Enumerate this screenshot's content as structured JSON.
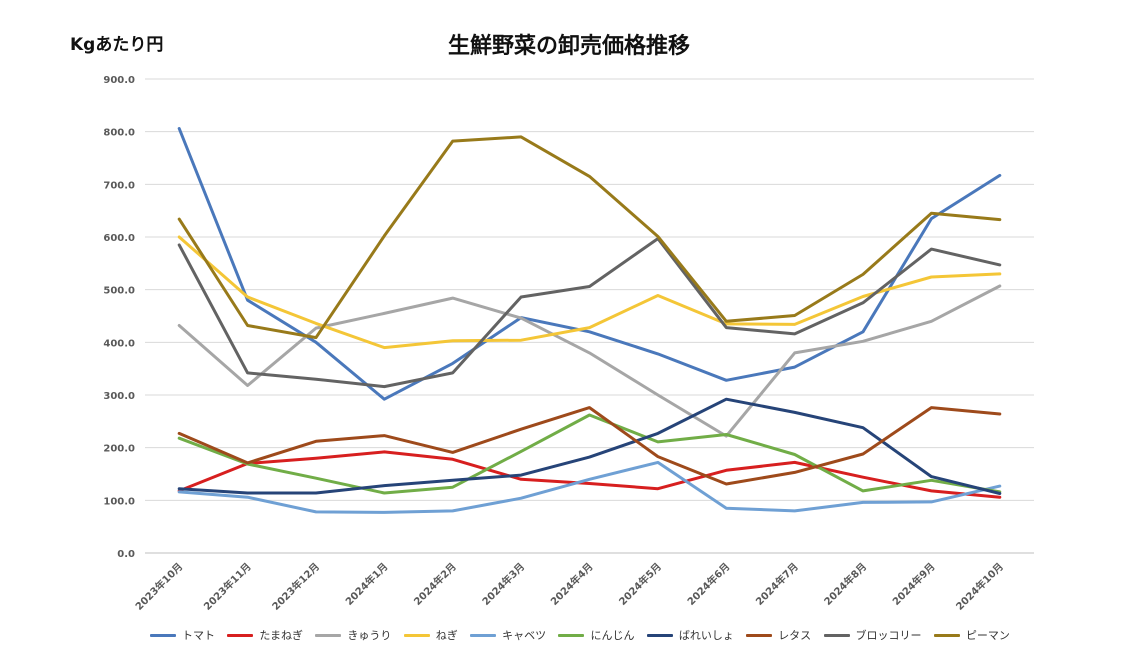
{
  "chart_data": {
    "type": "line",
    "title": "生鮮野菜の卸売価格推移",
    "ylabel": "Kgあたり円",
    "xlabel": "",
    "ylim": [
      0,
      900
    ],
    "yticks": [
      "0.0",
      "100.0",
      "200.0",
      "300.0",
      "400.0",
      "500.0",
      "600.0",
      "700.0",
      "800.0",
      "900.0"
    ],
    "yticks_values": [
      0,
      100,
      200,
      300,
      400,
      500,
      600,
      700,
      800,
      900
    ],
    "grid": true,
    "legend_position": "bottom",
    "categories": [
      "2023年10月",
      "2023年11月",
      "2023年12月",
      "2024年1月",
      "2024年2月",
      "2024年3月",
      "2024年4月",
      "2024年5月",
      "2024年6月",
      "2024年7月",
      "2024年8月",
      "2024年9月",
      "2024年10月"
    ],
    "series": [
      {
        "name": "トマト",
        "color": "#4a78bb",
        "values": [
          806,
          480,
          400,
          292,
          360,
          447,
          420,
          378,
          328,
          353,
          420,
          635,
          717
        ]
      },
      {
        "name": "たまねぎ",
        "color": "#d71f1f",
        "values": [
          118,
          170,
          180,
          192,
          178,
          140,
          132,
          122,
          157,
          172,
          144,
          118,
          106
        ]
      },
      {
        "name": "きゅうり",
        "color": "#a6a6a6",
        "values": [
          432,
          318,
          427,
          455,
          484,
          446,
          380,
          300,
          222,
          380,
          402,
          440,
          507
        ]
      },
      {
        "name": "ねぎ",
        "color": "#f4c637",
        "values": [
          600,
          486,
          436,
          390,
          403,
          404,
          428,
          489,
          435,
          434,
          487,
          524,
          530
        ]
      },
      {
        "name": "キャベツ",
        "color": "#6fa0d4",
        "values": [
          116,
          106,
          78,
          77,
          80,
          104,
          140,
          172,
          85,
          80,
          96,
          97,
          127
        ]
      },
      {
        "name": "にんじん",
        "color": "#71ad47",
        "values": [
          218,
          169,
          142,
          114,
          125,
          193,
          262,
          211,
          225,
          187,
          118,
          138,
          116
        ]
      },
      {
        "name": "ばれいしょ",
        "color": "#264478",
        "values": [
          122,
          114,
          114,
          128,
          138,
          148,
          182,
          227,
          292,
          267,
          238,
          145,
          113
        ]
      },
      {
        "name": "レタス",
        "color": "#9e4a1b",
        "values": [
          227,
          171,
          212,
          223,
          191,
          235,
          276,
          183,
          131,
          153,
          188,
          276,
          264
        ]
      },
      {
        "name": "ブロッコリー",
        "color": "#636363",
        "values": [
          585,
          342,
          330,
          316,
          342,
          486,
          506,
          597,
          428,
          416,
          475,
          577,
          547
        ]
      },
      {
        "name": "ピーマン",
        "color": "#987a1a",
        "values": [
          634,
          432,
          409,
          602,
          782,
          790,
          715,
          601,
          440,
          451,
          529,
          645,
          633
        ]
      }
    ]
  }
}
